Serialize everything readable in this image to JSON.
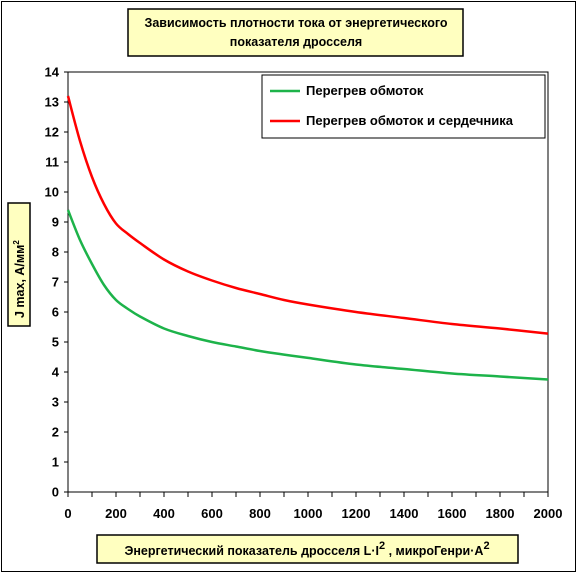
{
  "chart_data": {
    "type": "line",
    "title_line1": "Зависимость плотности тока от энергетического",
    "title_line2": "показателя дросселя",
    "xlabel": "Энергетический показатель дросселя L·I",
    "xlabel_sup": "2",
    "xlabel_tail": " , микроГенри·А",
    "xlabel_tail_sup": "2",
    "ylabel": "J max, А/мм",
    "ylabel_sup": "2",
    "xlim": [
      0,
      2000
    ],
    "ylim": [
      0,
      14
    ],
    "xticks": [
      "0",
      "200",
      "400",
      "600",
      "800",
      "1000",
      "1200",
      "1400",
      "1600",
      "1800",
      "2000"
    ],
    "yticks": [
      "0",
      "1",
      "2",
      "3",
      "4",
      "5",
      "6",
      "7",
      "8",
      "9",
      "10",
      "11",
      "12",
      "13",
      "14"
    ],
    "legend_position": "top-right",
    "colors": {
      "title_box": "#ffffc0",
      "series_green": "#1db34a",
      "series_red": "#ff0000"
    },
    "series": [
      {
        "name": "Перегрев обмоток",
        "color": "#1db34a",
        "x": [
          0,
          50,
          100,
          150,
          200,
          250,
          300,
          400,
          500,
          600,
          700,
          800,
          900,
          1000,
          1200,
          1400,
          1600,
          1800,
          2000
        ],
        "y": [
          9.4,
          8.4,
          7.6,
          6.9,
          6.4,
          6.1,
          5.85,
          5.45,
          5.2,
          5.0,
          4.85,
          4.7,
          4.58,
          4.47,
          4.25,
          4.1,
          3.95,
          3.85,
          3.75
        ]
      },
      {
        "name": "Перегрев обмоток и сердечника",
        "color": "#ff0000",
        "x": [
          0,
          50,
          100,
          150,
          200,
          250,
          300,
          400,
          500,
          600,
          700,
          800,
          900,
          1000,
          1200,
          1400,
          1600,
          1800,
          2000
        ],
        "y": [
          13.2,
          11.7,
          10.5,
          9.6,
          8.95,
          8.6,
          8.3,
          7.75,
          7.35,
          7.05,
          6.8,
          6.6,
          6.4,
          6.25,
          6.0,
          5.8,
          5.6,
          5.45,
          5.28
        ]
      }
    ]
  }
}
